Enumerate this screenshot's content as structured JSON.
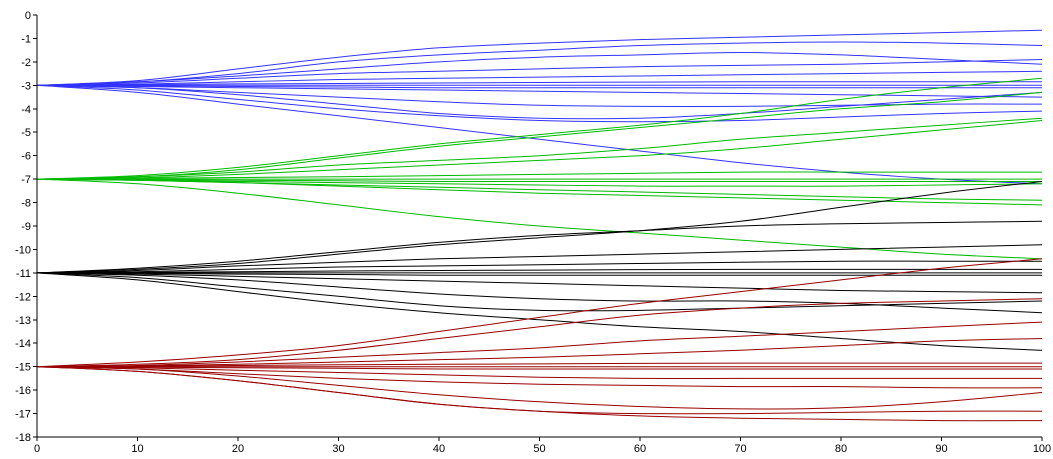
{
  "chart_data": {
    "type": "line",
    "title": "",
    "xlabel": "",
    "ylabel": "",
    "xlim": [
      0,
      100
    ],
    "ylim": [
      -18,
      0
    ],
    "grid": false,
    "legend": "none",
    "x_ticks": [
      "0",
      "10",
      "20",
      "30",
      "40",
      "50",
      "60",
      "70",
      "80",
      "90",
      "100"
    ],
    "y_ticks": [
      "0",
      "-1",
      "-2",
      "-3",
      "-4",
      "-5",
      "-6",
      "-7",
      "-8",
      "-9",
      "-10",
      "-11",
      "-12",
      "-13",
      "-14",
      "-15",
      "-16",
      "-17",
      "-18"
    ],
    "x": [
      0,
      10,
      20,
      30,
      40,
      50,
      60,
      70,
      80,
      90,
      100
    ],
    "colors": {
      "blue": "#3333ff",
      "green": "#00bb00",
      "black": "#000000",
      "red": "#990000"
    },
    "series": [
      {
        "group": "blue",
        "values": [
          -3,
          -2.8,
          -2.3,
          -1.8,
          -1.4,
          -1.2,
          -1.05,
          -0.95,
          -0.85,
          -0.75,
          -0.65
        ]
      },
      {
        "group": "blue",
        "values": [
          -3,
          -2.85,
          -2.5,
          -2.0,
          -1.7,
          -1.5,
          -1.3,
          -1.2,
          -1.15,
          -1.2,
          -1.3
        ]
      },
      {
        "group": "blue",
        "values": [
          -3,
          -2.85,
          -2.6,
          -2.3,
          -2.0,
          -1.8,
          -1.7,
          -1.6,
          -1.7,
          -1.9,
          -2.1
        ]
      },
      {
        "group": "blue",
        "values": [
          -3,
          -2.9,
          -2.7,
          -2.5,
          -2.4,
          -2.3,
          -2.2,
          -2.15,
          -2.1,
          -2.0,
          -1.9
        ]
      },
      {
        "group": "blue",
        "values": [
          -3,
          -2.95,
          -2.85,
          -2.75,
          -2.7,
          -2.65,
          -2.6,
          -2.55,
          -2.5,
          -2.45,
          -2.4
        ]
      },
      {
        "group": "blue",
        "values": [
          -3,
          -2.97,
          -2.94,
          -2.92,
          -2.9,
          -2.88,
          -2.86,
          -2.85,
          -2.85,
          -2.85,
          -2.85
        ]
      },
      {
        "group": "blue",
        "values": [
          -3,
          -3.0,
          -3.0,
          -3.0,
          -3.0,
          -3.0,
          -3.0,
          -3.0,
          -3.0,
          -3.0,
          -3.0
        ]
      },
      {
        "group": "blue",
        "values": [
          -3,
          -3.02,
          -3.05,
          -3.07,
          -3.1,
          -3.1,
          -3.1,
          -3.1,
          -3.1,
          -3.1,
          -3.1
        ]
      },
      {
        "group": "blue",
        "values": [
          -3,
          -3.05,
          -3.1,
          -3.15,
          -3.2,
          -3.25,
          -3.3,
          -3.35,
          -3.4,
          -3.45,
          -3.5
        ]
      },
      {
        "group": "blue",
        "values": [
          -3,
          -3.1,
          -3.3,
          -3.5,
          -3.7,
          -3.85,
          -3.9,
          -3.9,
          -3.85,
          -3.8,
          -3.8
        ]
      },
      {
        "group": "blue",
        "values": [
          -3,
          -3.1,
          -3.4,
          -3.8,
          -4.2,
          -4.4,
          -4.4,
          -4.2,
          -3.9,
          -3.6,
          -3.3
        ]
      },
      {
        "group": "blue",
        "values": [
          -3,
          -3.2,
          -3.6,
          -4.0,
          -4.3,
          -4.5,
          -4.55,
          -4.5,
          -4.35,
          -4.2,
          -4.1
        ]
      },
      {
        "group": "blue",
        "values": [
          -3,
          -3.3,
          -3.8,
          -4.3,
          -4.8,
          -5.3,
          -5.8,
          -6.3,
          -6.7,
          -7.0,
          -7.2
        ]
      },
      {
        "group": "green",
        "values": [
          -7,
          -6.85,
          -6.5,
          -6.0,
          -5.5,
          -5.1,
          -4.7,
          -4.2,
          -3.6,
          -3.1,
          -2.7
        ]
      },
      {
        "group": "green",
        "values": [
          -7,
          -6.9,
          -6.6,
          -6.1,
          -5.6,
          -5.2,
          -4.8,
          -4.4,
          -4.0,
          -3.7,
          -3.3
        ]
      },
      {
        "group": "green",
        "values": [
          -7,
          -6.9,
          -6.7,
          -6.4,
          -6.2,
          -6.0,
          -5.7,
          -5.3,
          -5.0,
          -4.7,
          -4.4
        ]
      },
      {
        "group": "green",
        "values": [
          -7,
          -6.95,
          -6.8,
          -6.6,
          -6.4,
          -6.2,
          -6.0,
          -5.7,
          -5.3,
          -4.9,
          -4.5
        ]
      },
      {
        "group": "green",
        "values": [
          -7,
          -6.97,
          -6.93,
          -6.9,
          -6.85,
          -6.8,
          -6.75,
          -6.7,
          -6.7,
          -6.7,
          -6.7
        ]
      },
      {
        "group": "green",
        "values": [
          -7,
          -7.0,
          -7.0,
          -7.0,
          -7.0,
          -7.0,
          -7.0,
          -7.0,
          -7.0,
          -7.0,
          -7.0
        ]
      },
      {
        "group": "green",
        "values": [
          -7,
          -7.02,
          -7.05,
          -7.07,
          -7.1,
          -7.1,
          -7.1,
          -7.1,
          -7.1,
          -7.1,
          -7.1
        ]
      },
      {
        "group": "green",
        "values": [
          -7,
          -7.05,
          -7.1,
          -7.15,
          -7.2,
          -7.25,
          -7.3,
          -7.3,
          -7.3,
          -7.25,
          -7.2
        ]
      },
      {
        "group": "green",
        "values": [
          -7,
          -7.05,
          -7.15,
          -7.25,
          -7.35,
          -7.45,
          -7.55,
          -7.65,
          -7.75,
          -7.85,
          -7.9
        ]
      },
      {
        "group": "green",
        "values": [
          -7,
          -7.05,
          -7.15,
          -7.3,
          -7.45,
          -7.6,
          -7.7,
          -7.8,
          -7.9,
          -8.0,
          -8.1
        ]
      },
      {
        "group": "green",
        "values": [
          -7,
          -7.2,
          -7.6,
          -8.1,
          -8.6,
          -9.0,
          -9.3,
          -9.6,
          -9.9,
          -10.2,
          -10.4
        ]
      },
      {
        "group": "black",
        "values": [
          -11,
          -10.85,
          -10.6,
          -10.2,
          -9.8,
          -9.5,
          -9.2,
          -8.8,
          -8.2,
          -7.6,
          -7.1
        ]
      },
      {
        "group": "black",
        "values": [
          -11,
          -10.8,
          -10.5,
          -10.1,
          -9.7,
          -9.4,
          -9.2,
          -9.0,
          -8.9,
          -8.85,
          -8.8
        ]
      },
      {
        "group": "black",
        "values": [
          -11,
          -10.9,
          -10.7,
          -10.55,
          -10.4,
          -10.3,
          -10.2,
          -10.1,
          -10.0,
          -9.9,
          -9.8
        ]
      },
      {
        "group": "black",
        "values": [
          -11,
          -10.95,
          -10.85,
          -10.75,
          -10.7,
          -10.65,
          -10.6,
          -10.55,
          -10.5,
          -10.5,
          -10.5
        ]
      },
      {
        "group": "black",
        "values": [
          -11,
          -10.98,
          -10.95,
          -10.92,
          -10.9,
          -10.88,
          -10.86,
          -10.85,
          -10.85,
          -10.85,
          -10.85
        ]
      },
      {
        "group": "black",
        "values": [
          -11,
          -11.0,
          -11.0,
          -11.0,
          -11.0,
          -11.0,
          -11.0,
          -11.0,
          -11.0,
          -11.0,
          -11.0
        ]
      },
      {
        "group": "black",
        "values": [
          -11,
          -11.02,
          -11.05,
          -11.07,
          -11.1,
          -11.1,
          -11.1,
          -11.1,
          -11.1,
          -11.1,
          -11.1
        ]
      },
      {
        "group": "black",
        "values": [
          -11,
          -11.05,
          -11.15,
          -11.25,
          -11.35,
          -11.45,
          -11.55,
          -11.65,
          -11.75,
          -11.8,
          -11.85
        ]
      },
      {
        "group": "black",
        "values": [
          -11,
          -11.1,
          -11.3,
          -11.6,
          -11.9,
          -12.1,
          -12.2,
          -12.2,
          -12.3,
          -12.5,
          -12.7
        ]
      },
      {
        "group": "black",
        "values": [
          -11,
          -11.2,
          -11.6,
          -12.0,
          -12.4,
          -12.6,
          -12.6,
          -12.5,
          -12.4,
          -12.3,
          -12.2
        ]
      },
      {
        "group": "black",
        "values": [
          -11,
          -11.3,
          -11.8,
          -12.3,
          -12.7,
          -13.0,
          -13.3,
          -13.5,
          -13.8,
          -14.1,
          -14.3
        ]
      },
      {
        "group": "red",
        "values": [
          -15,
          -14.8,
          -14.5,
          -14.1,
          -13.5,
          -12.9,
          -12.3,
          -11.8,
          -11.3,
          -10.8,
          -10.4
        ]
      },
      {
        "group": "red",
        "values": [
          -15,
          -14.9,
          -14.7,
          -14.3,
          -13.8,
          -13.3,
          -12.8,
          -12.5,
          -12.3,
          -12.2,
          -12.1
        ]
      },
      {
        "group": "red",
        "values": [
          -15,
          -14.95,
          -14.8,
          -14.6,
          -14.4,
          -14.2,
          -13.9,
          -13.7,
          -13.5,
          -13.3,
          -13.1
        ]
      },
      {
        "group": "red",
        "values": [
          -15,
          -14.97,
          -14.9,
          -14.8,
          -14.7,
          -14.6,
          -14.45,
          -14.3,
          -14.1,
          -13.9,
          -13.8
        ]
      },
      {
        "group": "red",
        "values": [
          -15,
          -14.98,
          -14.95,
          -14.92,
          -14.9,
          -14.88,
          -14.86,
          -14.85,
          -14.85,
          -14.85,
          -14.85
        ]
      },
      {
        "group": "red",
        "values": [
          -15,
          -15.0,
          -15.0,
          -15.0,
          -15.0,
          -15.0,
          -15.0,
          -15.0,
          -15.0,
          -15.0,
          -15.0
        ]
      },
      {
        "group": "red",
        "values": [
          -15,
          -15.02,
          -15.05,
          -15.07,
          -15.1,
          -15.1,
          -15.1,
          -15.1,
          -15.1,
          -15.1,
          -15.1
        ]
      },
      {
        "group": "red",
        "values": [
          -15,
          -15.05,
          -15.15,
          -15.25,
          -15.35,
          -15.45,
          -15.5,
          -15.5,
          -15.5,
          -15.5,
          -15.5
        ]
      },
      {
        "group": "red",
        "values": [
          -15,
          -15.1,
          -15.3,
          -15.5,
          -15.65,
          -15.75,
          -15.8,
          -15.85,
          -15.85,
          -15.9,
          -15.9
        ]
      },
      {
        "group": "red",
        "values": [
          -15,
          -15.1,
          -15.4,
          -15.8,
          -16.2,
          -16.5,
          -16.7,
          -16.8,
          -16.75,
          -16.5,
          -16.1
        ]
      },
      {
        "group": "red",
        "values": [
          -15,
          -15.2,
          -15.6,
          -16.1,
          -16.6,
          -16.9,
          -17.0,
          -17.0,
          -16.95,
          -16.9,
          -16.9
        ]
      },
      {
        "group": "red",
        "values": [
          -15,
          -15.2,
          -15.6,
          -16.1,
          -16.6,
          -16.9,
          -17.1,
          -17.2,
          -17.25,
          -17.3,
          -17.3
        ]
      }
    ]
  }
}
